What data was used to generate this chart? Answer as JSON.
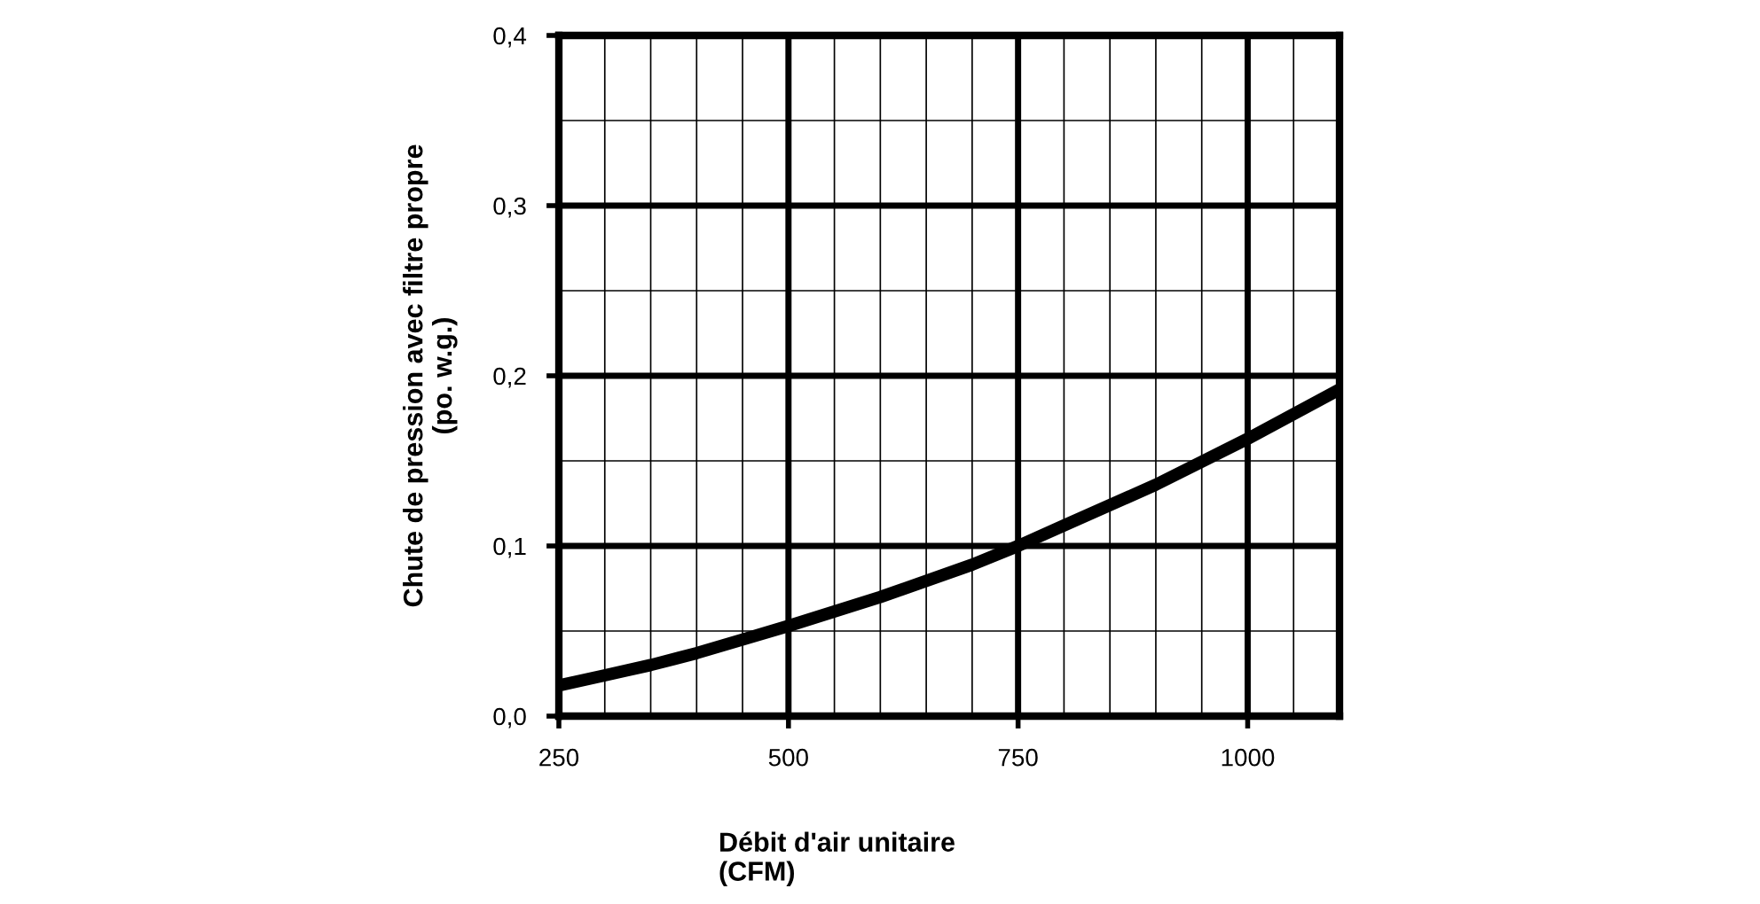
{
  "chart_data": {
    "type": "line",
    "xlabel": "Débit d'air unitaire\n(CFM)",
    "ylabel": "Chute de pression avec filtre propre\n(po. w.g.)",
    "x": [
      250,
      300,
      350,
      400,
      450,
      500,
      600,
      700,
      750,
      800,
      900,
      1000,
      1100
    ],
    "series": [
      {
        "color": "#000000",
        "values": [
          0.018,
          0.024,
          0.03,
          0.037,
          0.045,
          0.053,
          0.07,
          0.089,
          0.1,
          0.112,
          0.136,
          0.163,
          0.192
        ]
      }
    ],
    "xlim": [
      250,
      1100
    ],
    "ylim": [
      0,
      0.4
    ],
    "xticks": [
      250,
      {
        "value": 300,
        "label": null
      },
      {
        "value": 350,
        "label": null
      },
      {
        "value": 400,
        "label": null
      },
      {
        "value": 450,
        "label": null
      },
      500,
      {
        "value": 550,
        "label": null
      },
      {
        "value": 600,
        "label": null
      },
      {
        "value": 650,
        "label": null
      },
      {
        "value": 700,
        "label": null
      },
      750,
      {
        "value": 800,
        "label": null
      },
      {
        "value": 850,
        "label": null
      },
      {
        "value": 900,
        "label": null
      },
      {
        "value": 950,
        "label": null
      },
      1000,
      {
        "value": 1050,
        "label": null
      }
    ],
    "yticks": [
      {
        "value": 0,
        "label": "0,0"
      },
      {
        "value": 0.05,
        "label": null
      },
      {
        "value": 0.1,
        "label": "0,1"
      },
      {
        "value": 0.15,
        "label": null
      },
      {
        "value": 0.2,
        "label": "0,2"
      },
      {
        "value": 0.25,
        "label": null
      },
      {
        "value": 0.3,
        "label": "0,3"
      },
      {
        "value": 0.35,
        "label": null
      },
      {
        "value": 0.4,
        "label": "0,4"
      }
    ],
    "grid": true,
    "marker": "none",
    "line_style": "solid"
  }
}
